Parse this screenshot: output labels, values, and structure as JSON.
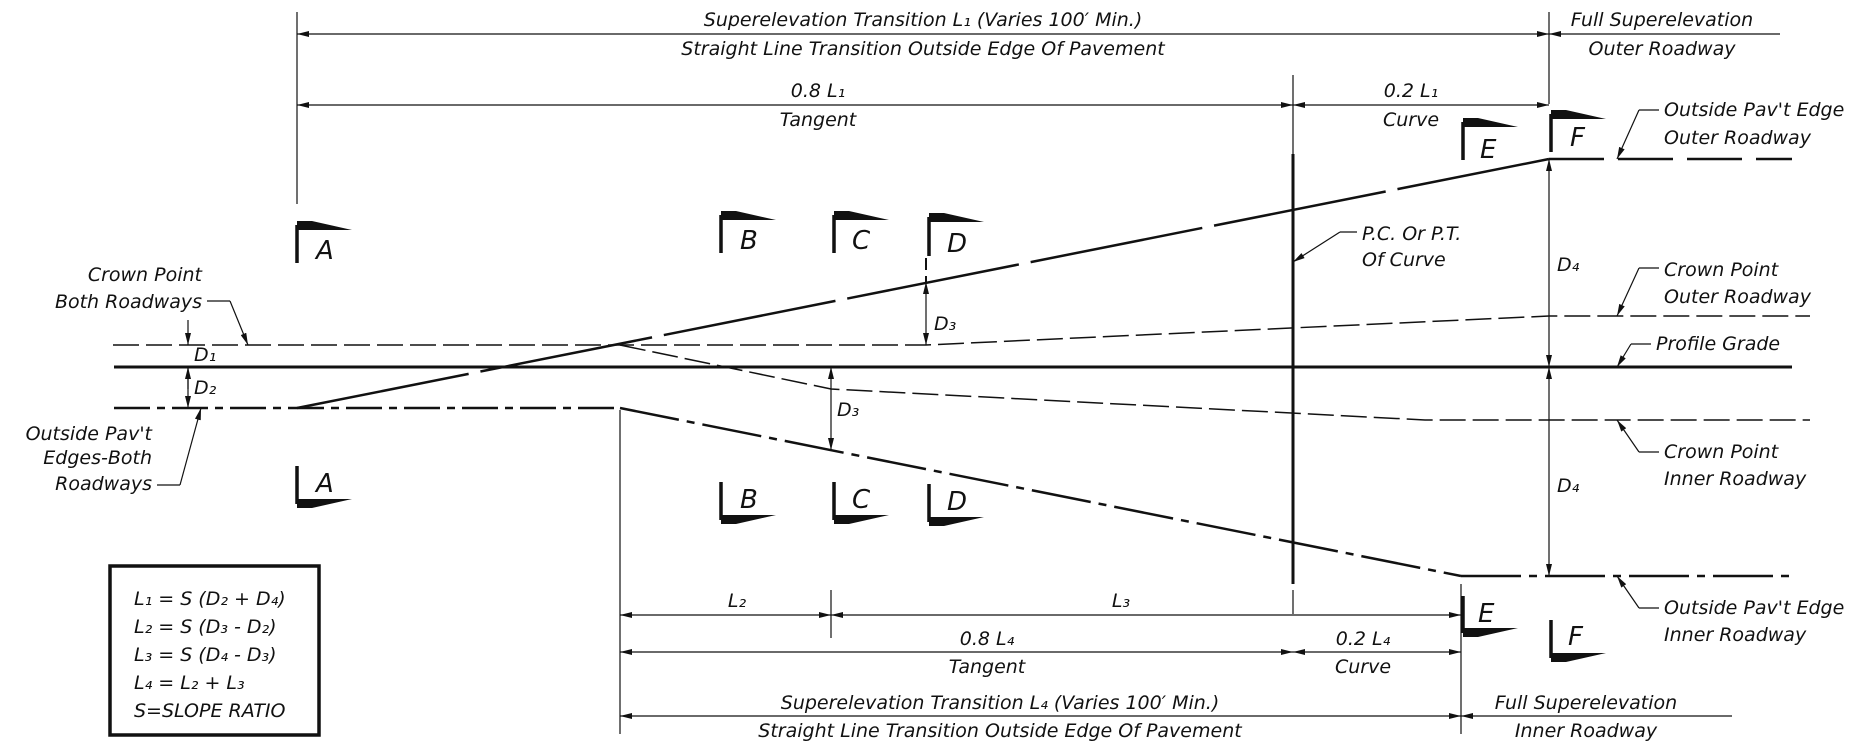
{
  "dimensions": {
    "l1_top": "Superelevation Transition L₁ (Varies 100′ Min.)",
    "l1_bottom": "Straight Line Transition Outside Edge Of Pavement",
    "full_outer_top": "Full Superelevation",
    "full_outer_bottom": "Outer Roadway",
    "l1_tangent_top": "0.8 L₁",
    "l1_tangent_bottom": "Tangent",
    "l1_curve_top": "0.2 L₁",
    "l1_curve_bottom": "Curve",
    "l2": "L₂",
    "l3": "L₃",
    "l4_tangent_top": "0.8 L₄",
    "l4_tangent_bottom": "Tangent",
    "l4_curve_top": "0.2 L₄",
    "l4_curve_bottom": "Curve",
    "l4_top": "Superelevation Transition L₄ (Varies 100′ Min.)",
    "l4_bottom": "Straight Line Transition Outside Edge Of Pavement",
    "full_inner_top": "Full Superelevation",
    "full_inner_bottom": "Inner Roadway"
  },
  "labels": {
    "crown_both_1": "Crown Point",
    "crown_both_2": "Both Roadways",
    "outside_both_1": "Outside Pav't",
    "outside_both_2": "Edges-Both",
    "outside_both_3": "Roadways",
    "pc_pt_1": "P.C. Or P.T.",
    "pc_pt_2": "Of Curve",
    "outer_edge_1": "Outside Pav't Edge",
    "outer_edge_2": "Outer Roadway",
    "crown_outer_1": "Crown Point",
    "crown_outer_2": "Outer Roadway",
    "profile_grade": "Profile Grade",
    "crown_inner_1": "Crown Point",
    "crown_inner_2": "Inner Roadway",
    "inner_edge_1": "Outside Pav't Edge",
    "inner_edge_2": "Inner Roadway"
  },
  "offsets": {
    "d1": "D₁",
    "d2": "D₂",
    "d3_outer": "D₃",
    "d3_inner": "D₃",
    "d4_outer": "D₄",
    "d4_inner": "D₄"
  },
  "sections": {
    "a_top": "A",
    "a_bottom": "A",
    "b_top": "B",
    "b_bottom": "B",
    "c_top": "C",
    "c_bottom": "C",
    "d_top": "D",
    "d_bottom": "D",
    "e_top": "E",
    "e_bottom": "E",
    "f_top": "F",
    "f_bottom": "F"
  },
  "formulas": [
    "L₁ = S (D₂ + D₄)",
    "L₂ = S (D₃ - D₂)",
    "L₃ = S (D₄ - D₃)",
    "L₄ = L₂ + L₃",
    "S=SLOPE RATIO"
  ]
}
